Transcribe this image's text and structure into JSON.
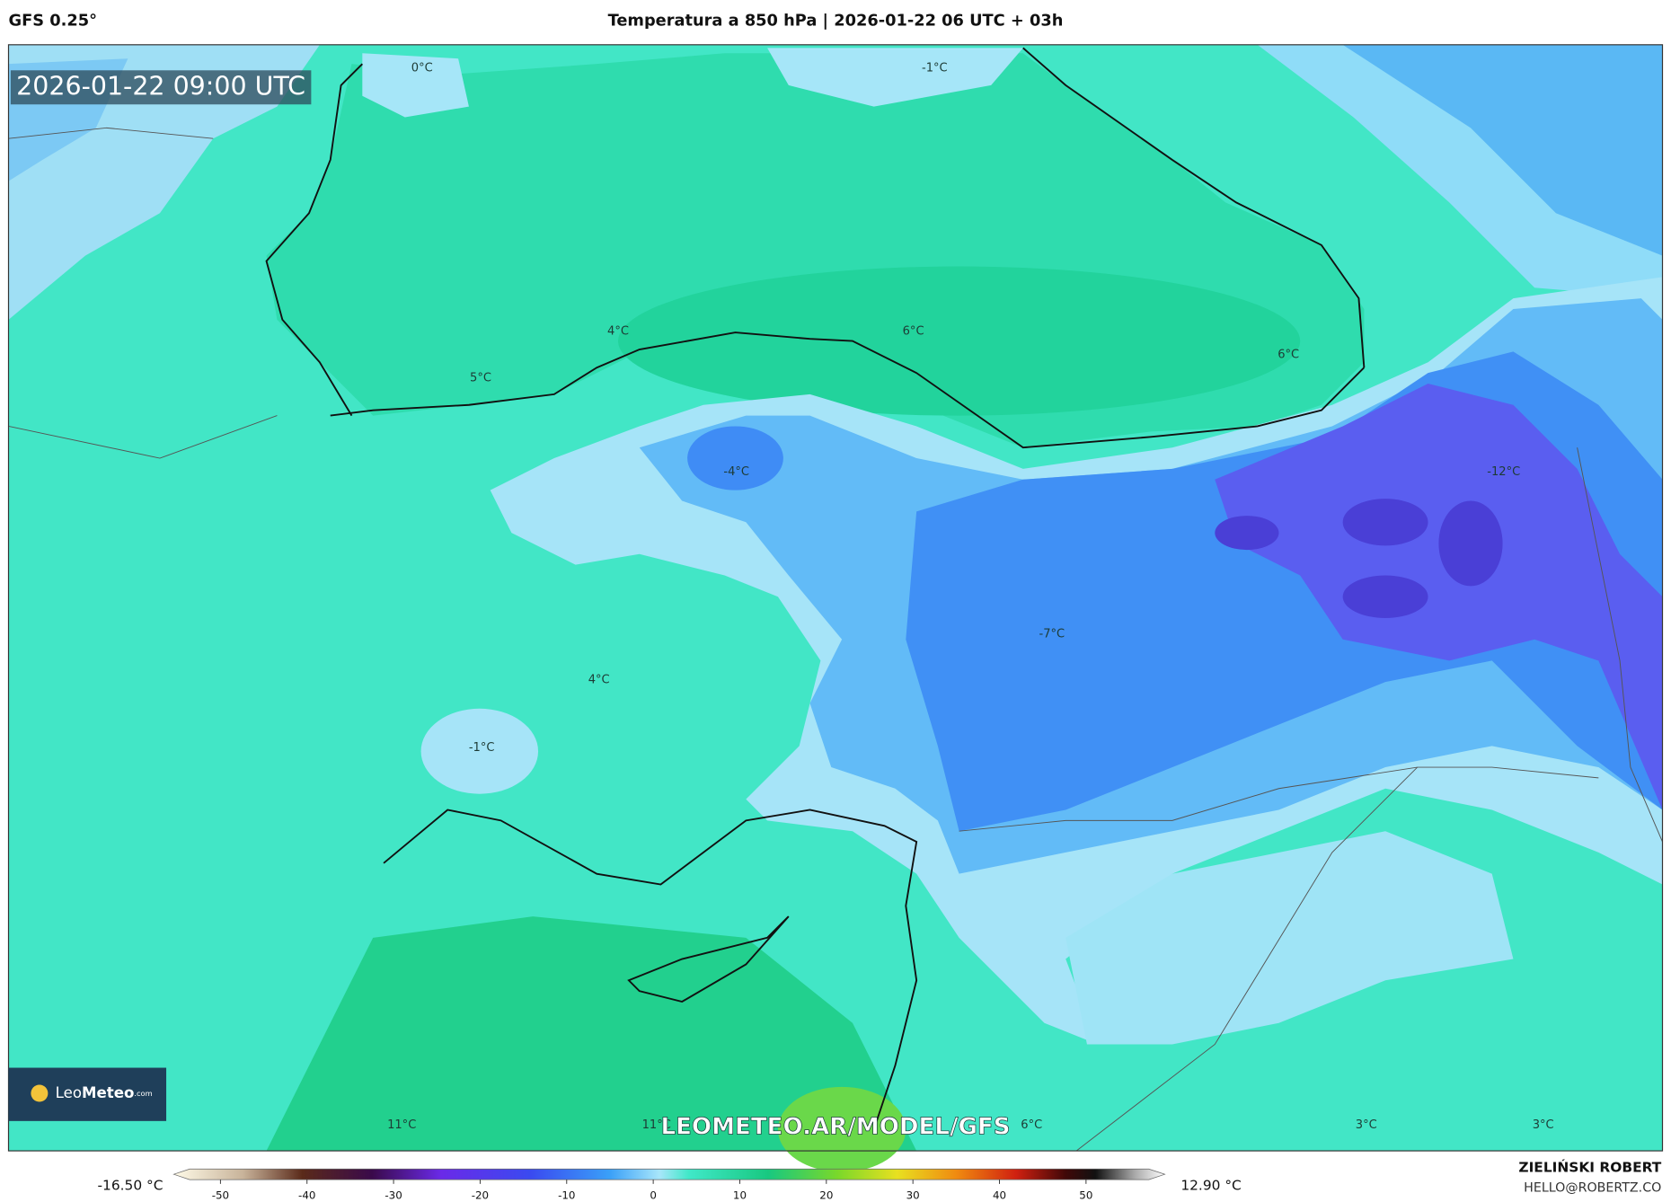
{
  "header": {
    "model": "GFS 0.25°",
    "title": "Temperatura a 850 hPa | 2026-01-22 06 UTC + 03h"
  },
  "valid_time": "2026-01-22 09:00 UTC",
  "contour_labels": [
    "0°C",
    "-1°C",
    "4°C",
    "6°C",
    "5°C",
    "6°C",
    "-4°C",
    "-12°C",
    "-7°C",
    "4°C",
    "-1°C",
    "11°C",
    "11°C",
    "6°C",
    "3°C",
    "3°C"
  ],
  "watermark": "LEOMETEO.AR/MODEL/GFS",
  "logo": {
    "brand": "Leo",
    "brand_bold": "Meteo",
    "suffix": ".com"
  },
  "colorbar": {
    "min_label": "-16.50 °C",
    "max_label": "12.90 °C",
    "range": [
      -55.4,
      59.1
    ],
    "ticks": [
      -50,
      -40,
      -30,
      -20,
      -10,
      0,
      10,
      20,
      30,
      40,
      50
    ]
  },
  "author": {
    "name": "ZIELIŃSKI ROBERT",
    "email": "HELLO@ROBERTZ.CO"
  }
}
